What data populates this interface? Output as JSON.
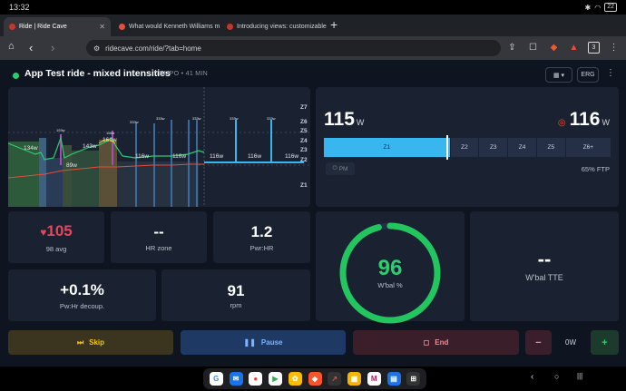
{
  "status": {
    "time": "13:32",
    "battery": "22"
  },
  "tabs": [
    {
      "label": "Ride | Ride Cave"
    },
    {
      "label": "What would Kenneth Williams m"
    },
    {
      "label": "Introducing views: customizable"
    }
  ],
  "browser": {
    "url": "ridecave.com/ride/?tab=home",
    "tab_count": "3"
  },
  "header": {
    "title": "App Test ride - mixed intensities",
    "subtitle": "TEMPO • 41 MIN",
    "erg": "ERG"
  },
  "chart": {
    "zone_labels": [
      "Z7",
      "Z6",
      "Z5",
      "Z4",
      "Z3",
      "Z2",
      "Z1"
    ],
    "interval_labels": [
      "134w",
      "193w",
      "89w",
      "143w",
      "161w",
      "116w",
      "116w",
      "116w",
      "116w",
      "116w",
      "116w",
      "333w",
      "333w",
      "333w",
      "333w",
      "333w"
    ]
  },
  "power": {
    "current": "115",
    "unit": "W",
    "target": "116",
    "zones": [
      "Z1",
      "Z2",
      "Z3",
      "Z4",
      "Z5",
      "Z6+"
    ],
    "pm": "PM",
    "ftp": "65% FTP"
  },
  "tiles": {
    "hr": {
      "value": "105",
      "label": "98 avg"
    },
    "hrzone": {
      "value": "--",
      "label": "HR zone"
    },
    "pwrhr": {
      "value": "1.2",
      "label": "Pwr:HR"
    },
    "decoup": {
      "value": "+0.1%",
      "label": "Pw:Hr decoup."
    },
    "rpm": {
      "value": "91",
      "label": "rpm"
    },
    "wbal": {
      "value": "96",
      "label": "W'bal %",
      "fraction": 0.96
    },
    "wbaltte": {
      "value": "--",
      "label": "W'bal TTE"
    }
  },
  "buttons": {
    "skip": "Skip",
    "pause": "Pause",
    "end": "End",
    "minus": "−",
    "erg_value": "0W",
    "plus": "+"
  },
  "colors": {
    "accent": "#38b6f0",
    "hr": "#e8455a",
    "green": "#2ecc71",
    "yellow": "#f1c40f"
  }
}
